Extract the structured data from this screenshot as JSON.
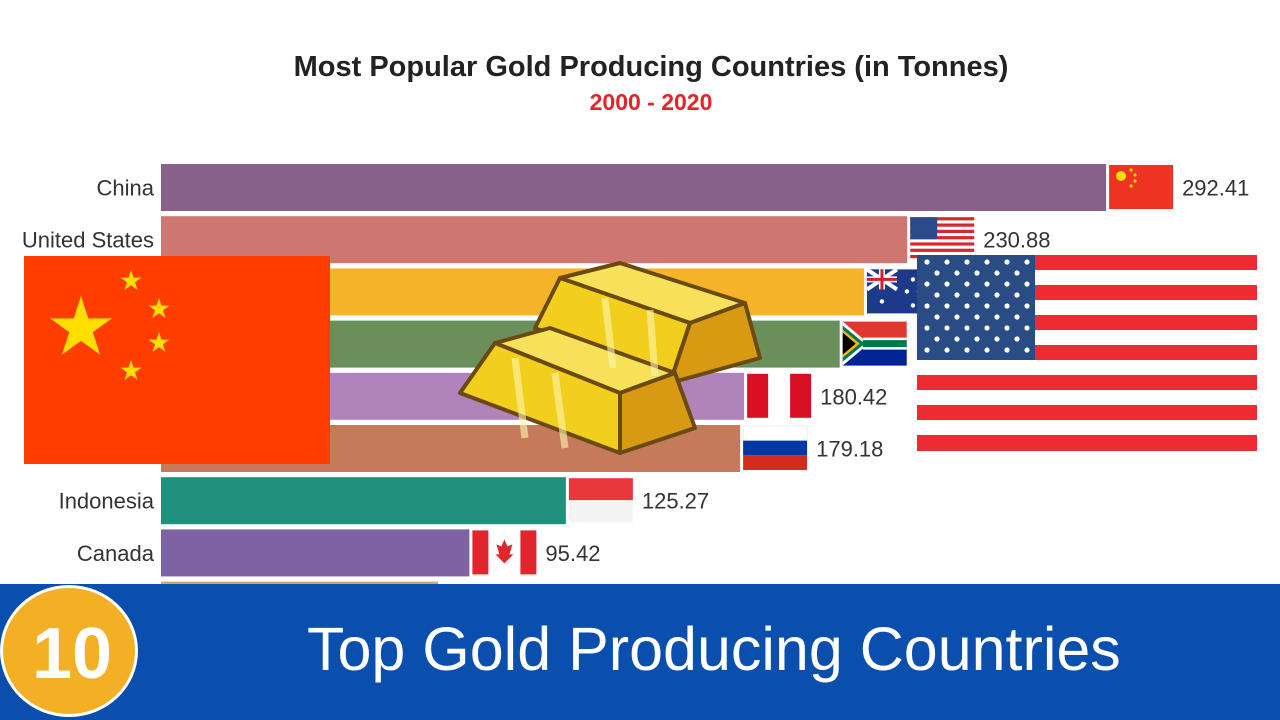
{
  "chart_data": {
    "type": "bar",
    "orientation": "horizontal",
    "title": "Most Popular Gold Producing Countries (in Tonnes)",
    "subtitle": "2000 - 2020",
    "categories": [
      "China",
      "United States",
      "Australia",
      "South Africa",
      "Peru",
      "Russia",
      "Indonesia",
      "Canada"
    ],
    "values": [
      292.41,
      230.88,
      217.5,
      210.0,
      180.42,
      179.18,
      125.27,
      95.42
    ],
    "value_labels": [
      "292.41",
      "230.88",
      "",
      "",
      "180.42",
      "179.18",
      "125.27",
      "95.42"
    ],
    "bar_colors": [
      "#876189",
      "#cd7672",
      "#f6b42b",
      "#6a8f5b",
      "#b083bb",
      "#c67a5c",
      "#1f917c",
      "#7d63a3"
    ],
    "flags": [
      "flag-china-icon",
      "flag-usa-icon",
      "flag-australia-icon",
      "flag-south-africa-icon",
      "flag-peru-icon",
      "flag-russia-icon",
      "flag-indonesia-icon",
      "flag-canada-icon"
    ],
    "title_color": "#222222",
    "subtitle_color": "#e0262b"
  },
  "banner": {
    "number": "10",
    "text": "Top Gold Producing Countries",
    "background": "#0a4fae",
    "badge_color": "#f4b024"
  },
  "overlays": [
    "large-china-flag-icon",
    "gold-bars-icon",
    "large-usa-flag-icon"
  ]
}
